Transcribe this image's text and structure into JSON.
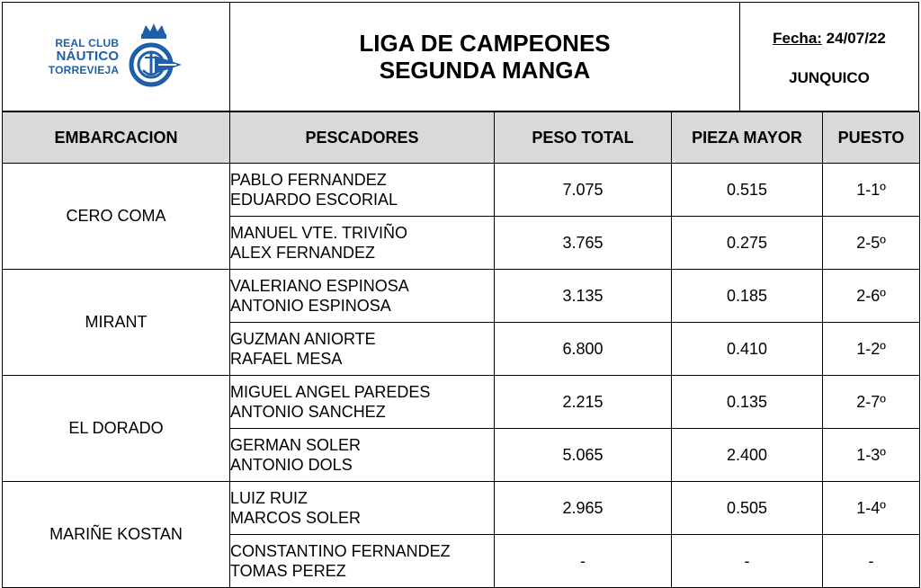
{
  "logo": {
    "line1": "REAL CLUB",
    "line2": "NÁUTICO",
    "line3": "TORREVIEJA",
    "color": "#1f5fa6",
    "icon": "club-emblem-icon"
  },
  "title": {
    "line1": "LIGA DE CAMPEONES",
    "line2": "SEGUNDA MANGA"
  },
  "meta": {
    "date_label": "Fecha:",
    "date_value": "24/07/22",
    "place": "JUNQUICO"
  },
  "columns": {
    "boat": "EMBARCACION",
    "fishers": "PESCADORES",
    "total": "PESO TOTAL",
    "biggest": "PIEZA MAYOR",
    "position": "PUESTO"
  },
  "boats": [
    {
      "name": "CERO COMA",
      "crews": [
        {
          "fisher1": "PABLO FERNANDEZ",
          "fisher2": "EDUARDO ESCORIAL",
          "total": "7.075",
          "biggest": "0.515",
          "position": "1-1º"
        },
        {
          "fisher1": "MANUEL VTE. TRIVIÑO",
          "fisher2": "ALEX FERNANDEZ",
          "total": "3.765",
          "biggest": "0.275",
          "position": "2-5º"
        }
      ]
    },
    {
      "name": "MIRANT",
      "crews": [
        {
          "fisher1": "VALERIANO ESPINOSA",
          "fisher2": "ANTONIO ESPINOSA",
          "total": "3.135",
          "biggest": "0.185",
          "position": "2-6º"
        },
        {
          "fisher1": "GUZMAN ANIORTE",
          "fisher2": "RAFAEL MESA",
          "total": "6.800",
          "biggest": "0.410",
          "position": "1-2º"
        }
      ]
    },
    {
      "name": "EL DORADO",
      "crews": [
        {
          "fisher1": "MIGUEL ANGEL PAREDES",
          "fisher2": "ANTONIO SANCHEZ",
          "total": "2.215",
          "biggest": "0.135",
          "position": "2-7º"
        },
        {
          "fisher1": "GERMAN SOLER",
          "fisher2": "ANTONIO DOLS",
          "total": "5.065",
          "biggest": "2.400",
          "position": "1-3º"
        }
      ]
    },
    {
      "name": "MARIÑE KOSTAN",
      "crews": [
        {
          "fisher1": "LUIZ RUIZ",
          "fisher2": "MARCOS SOLER",
          "total": "2.965",
          "biggest": "0.505",
          "position": "1-4º"
        },
        {
          "fisher1": "CONSTANTINO FERNANDEZ",
          "fisher2": "TOMAS PEREZ",
          "total": "-",
          "biggest": "-",
          "position": "-"
        }
      ]
    }
  ]
}
